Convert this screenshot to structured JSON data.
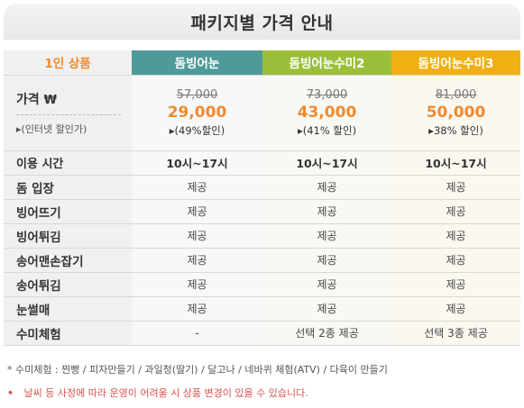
{
  "title": "패키지별 가격 안내",
  "header": {
    "corner": "1인 상품",
    "packages": [
      "돔빙어눈",
      "돔빙어눈수미2",
      "돔빙어눈수미3"
    ]
  },
  "price": {
    "label": "가격",
    "currency_symbol": "₩",
    "sub": "▸(인터넷 할인가)",
    "items": [
      {
        "original": "57,000",
        "sale": "29,000",
        "discount": "▸(49%할인)"
      },
      {
        "original": "73,000",
        "sale": "43,000",
        "discount": "▸(41% 할인)"
      },
      {
        "original": "81,000",
        "sale": "50,000",
        "discount": "▸38% 할인)"
      }
    ]
  },
  "time": {
    "label": "이용 시간",
    "values": [
      "10시~17시",
      "10시~17시",
      "10시~17시"
    ]
  },
  "features": [
    {
      "label": "돔 입장",
      "values": [
        "제공",
        "제공",
        "제공"
      ]
    },
    {
      "label": "빙어뜨기",
      "values": [
        "제공",
        "제공",
        "제공"
      ]
    },
    {
      "label": "빙어튀김",
      "values": [
        "제공",
        "제공",
        "제공"
      ]
    },
    {
      "label": "송어맨손잡기",
      "values": [
        "제공",
        "제공",
        "제공"
      ]
    },
    {
      "label": "송어튀김",
      "values": [
        "제공",
        "제공",
        "제공"
      ]
    },
    {
      "label": "눈썰매",
      "values": [
        "제공",
        "제공",
        "제공"
      ]
    },
    {
      "label": "수미체험",
      "values": [
        "-",
        "선택 2종 제공",
        "선택 3종 제공"
      ]
    }
  ],
  "footnote": "* 수미체험 :  찐빵 /  피자만들기 / 과일청(딸기) / 달고나 / 네바퀴 체험(ATV) / 다육이 만들기",
  "warning": "날씨 등 사정에 따라 운영이 어려울 시 상품 변경이 있을 수 있습니다.",
  "colors": {
    "accent_orange": "#f08a2e",
    "package1": "#4f9a98",
    "package2": "#9bbf3b",
    "package3": "#efb014",
    "warning_red": "#d9534f"
  }
}
